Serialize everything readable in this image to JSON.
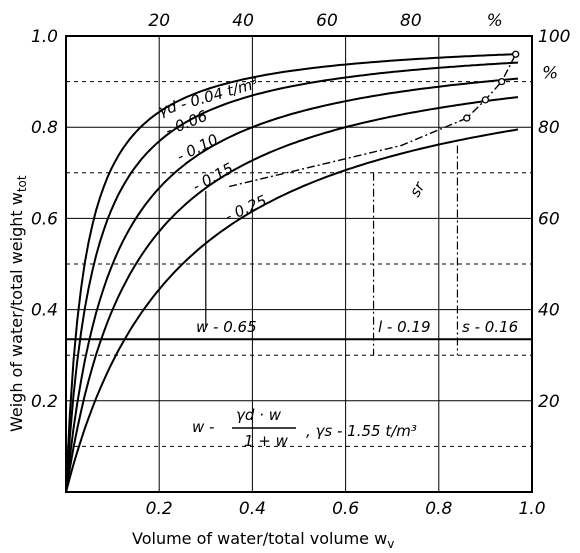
{
  "chart_data": {
    "type": "line",
    "title": "",
    "xlabel": "Volume of water/total volume w",
    "xlabel_sub": "v",
    "ylabel": "Weigh of water/total weight w",
    "ylabel_sub": "tot",
    "xlim": [
      0,
      1.0
    ],
    "ylim": [
      0,
      1.0
    ],
    "x_ticks": [
      "0.2",
      "0.4",
      "0.6",
      "0.8",
      "1.0"
    ],
    "y_ticks": [
      "0.2",
      "0.4",
      "0.6",
      "0.8",
      "1.0"
    ],
    "top_ticks": [
      "20",
      "40",
      "60",
      "80",
      "%"
    ],
    "right_ticks": [
      "20",
      "40",
      "60",
      "80",
      "100"
    ],
    "right_unit": "%",
    "grid": true,
    "series": [
      {
        "name": "γd=0.04 t/m³",
        "label": "γd - 0.04 t/m³",
        "gamma_d": 0.04
      },
      {
        "name": "0.06",
        "label": "- 0.06",
        "gamma_d": 0.06
      },
      {
        "name": "0.10",
        "label": "- 0.10",
        "gamma_d": 0.1
      },
      {
        "name": "0.15",
        "label": "- 0.15",
        "gamma_d": 0.15
      },
      {
        "name": "0.25",
        "label": "- 0.25",
        "gamma_d": 0.25
      }
    ],
    "saturation_curve": {
      "label": "sr",
      "end_points": [
        [
          0.965,
          0.96
        ]
      ]
    },
    "annotations": {
      "wv": "w  - 0.65",
      "lv": "l  - 0.19",
      "sv": "s  - 0.16",
      "formula_lhs": "w  -",
      "formula_num": "γd · w",
      "formula_den": "1 + w",
      "formula_rhs": ", γs - 1.55 t/m³"
    },
    "example_line_y": 0.335
  }
}
